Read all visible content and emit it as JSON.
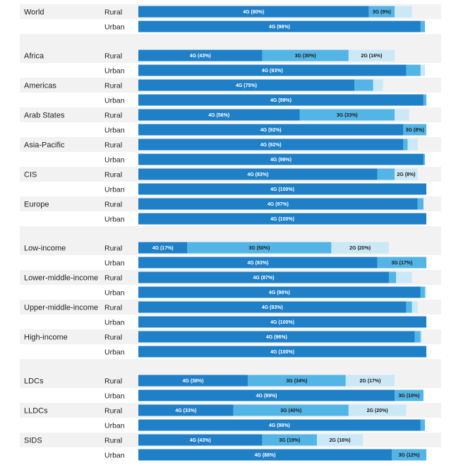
{
  "chart_data": {
    "type": "bar",
    "orientation": "horizontal",
    "stacked": true,
    "value_unit": "%",
    "xlim": [
      0,
      100
    ],
    "grid": false,
    "legend": "none",
    "segment_order": [
      "4G",
      "3G",
      "2G"
    ],
    "segment_colors": {
      "4G": "#1f80c8",
      "3G": "#53b4e6",
      "2G": "#cbe8f7"
    },
    "row_band_colors": [
      "#f2f2f2",
      "#ffffff"
    ],
    "groups": [
      {
        "section": 0,
        "label": "World",
        "rows": [
          {
            "area": "Rural",
            "values": {
              "4G": 80,
              "3G": 9,
              "2G": 6
            },
            "labels": {
              "4G": "4G (80%)",
              "3G": "3G (9%)"
            }
          },
          {
            "area": "Urban",
            "values": {
              "4G": 98,
              "3G": 1.5,
              "2G": 0
            },
            "labels": {
              "4G": "4G (98%)"
            }
          }
        ]
      },
      {
        "section": 1,
        "label": "Africa",
        "rows": [
          {
            "area": "Rural",
            "values": {
              "4G": 43,
              "3G": 30,
              "2G": 16
            },
            "labels": {
              "4G": "4G (43%)",
              "3G": "3G (30%)",
              "2G": "2G (16%)"
            }
          },
          {
            "area": "Urban",
            "values": {
              "4G": 93,
              "3G": 5,
              "2G": 1.5
            },
            "labels": {
              "4G": "4G (93%)"
            }
          }
        ]
      },
      {
        "section": 1,
        "label": "Americas",
        "rows": [
          {
            "area": "Rural",
            "values": {
              "4G": 75,
              "3G": 6.5,
              "2G": 3.5
            },
            "labels": {
              "4G": "4G (75%)"
            }
          },
          {
            "area": "Urban",
            "values": {
              "4G": 99,
              "3G": 1,
              "2G": 0
            },
            "labels": {
              "4G": "4G (99%)"
            }
          }
        ]
      },
      {
        "section": 1,
        "label": "Arab States",
        "rows": [
          {
            "area": "Rural",
            "values": {
              "4G": 56,
              "3G": 33,
              "2G": 5
            },
            "labels": {
              "4G": "4G (56%)",
              "3G": "3G (33%)"
            }
          },
          {
            "area": "Urban",
            "values": {
              "4G": 92,
              "3G": 8,
              "2G": 0
            },
            "labels": {
              "4G": "4G (92%)",
              "3G": "3G (8%)"
            }
          }
        ]
      },
      {
        "section": 1,
        "label": "Asia-Pacific",
        "rows": [
          {
            "area": "Rural",
            "values": {
              "4G": 92,
              "3G": 1.5,
              "2G": 3.5
            },
            "labels": {
              "4G": "4G (92%)"
            }
          },
          {
            "area": "Urban",
            "values": {
              "4G": 99,
              "3G": 0.5,
              "2G": 0
            },
            "labels": {
              "4G": "4G (99%)"
            }
          }
        ]
      },
      {
        "section": 1,
        "label": "CIS",
        "rows": [
          {
            "area": "Rural",
            "values": {
              "4G": 83,
              "3G": 6,
              "2G": 8
            },
            "labels": {
              "4G": "4G (83%)",
              "2G": "2G (8%)"
            }
          },
          {
            "area": "Urban",
            "values": {
              "4G": 100,
              "3G": 0,
              "2G": 0
            },
            "labels": {
              "4G": "4G (100%)"
            }
          }
        ]
      },
      {
        "section": 1,
        "label": "Europe",
        "rows": [
          {
            "area": "Rural",
            "values": {
              "4G": 97,
              "3G": 2,
              "2G": 0
            },
            "labels": {
              "4G": "4G (97%)"
            }
          },
          {
            "area": "Urban",
            "values": {
              "4G": 100,
              "3G": 0,
              "2G": 0
            },
            "labels": {
              "4G": "4G (100%)"
            }
          }
        ]
      },
      {
        "section": 2,
        "label": "Low-income",
        "rows": [
          {
            "area": "Rural",
            "values": {
              "4G": 17,
              "3G": 50,
              "2G": 20
            },
            "labels": {
              "4G": "4G (17%)",
              "3G": "3G (50%)",
              "2G": "2G (20%)"
            }
          },
          {
            "area": "Urban",
            "values": {
              "4G": 83,
              "3G": 17,
              "2G": 0
            },
            "labels": {
              "4G": "4G (83%)",
              "3G": "3G (17%)"
            }
          }
        ]
      },
      {
        "section": 2,
        "label": "Lower-middle-income",
        "rows": [
          {
            "area": "Rural",
            "values": {
              "4G": 87,
              "3G": 2.5,
              "2G": 5.5
            },
            "labels": {
              "4G": "4G (87%)"
            }
          },
          {
            "area": "Urban",
            "values": {
              "4G": 98,
              "3G": 1.5,
              "2G": 0.5
            },
            "labels": {
              "4G": "4G (98%)"
            }
          }
        ]
      },
      {
        "section": 2,
        "label": "Upper-middle-income",
        "rows": [
          {
            "area": "Rural",
            "values": {
              "4G": 93,
              "3G": 2,
              "2G": 2
            },
            "labels": {
              "4G": "4G (93%)"
            }
          },
          {
            "area": "Urban",
            "values": {
              "4G": 100,
              "3G": 0,
              "2G": 0
            },
            "labels": {
              "4G": "4G (100%)"
            }
          }
        ]
      },
      {
        "section": 2,
        "label": "High-income",
        "rows": [
          {
            "area": "Rural",
            "values": {
              "4G": 96,
              "3G": 2,
              "2G": 0.5
            },
            "labels": {
              "4G": "4G (96%)"
            }
          },
          {
            "area": "Urban",
            "values": {
              "4G": 100,
              "3G": 0,
              "2G": 0
            },
            "labels": {
              "4G": "4G (100%)"
            }
          }
        ]
      },
      {
        "section": 3,
        "label": "LDCs",
        "rows": [
          {
            "area": "Rural",
            "values": {
              "4G": 38,
              "3G": 34,
              "2G": 17
            },
            "labels": {
              "4G": "4G (38%)",
              "3G": "3G (34%)",
              "2G": "2G (17%)"
            }
          },
          {
            "area": "Urban",
            "values": {
              "4G": 89,
              "3G": 10,
              "2G": 0
            },
            "labels": {
              "4G": "4G (89%)",
              "3G": "3G (10%)"
            }
          }
        ]
      },
      {
        "section": 3,
        "label": "LLDCs",
        "rows": [
          {
            "area": "Rural",
            "values": {
              "4G": 33,
              "3G": 40,
              "2G": 20
            },
            "labels": {
              "4G": "4G (33%)",
              "3G": "3G (40%)",
              "2G": "2G (20%)"
            }
          },
          {
            "area": "Urban",
            "values": {
              "4G": 98,
              "3G": 1.5,
              "2G": 0
            },
            "labels": {
              "4G": "4G (98%)"
            }
          }
        ]
      },
      {
        "section": 3,
        "label": "SIDS",
        "rows": [
          {
            "area": "Rural",
            "values": {
              "4G": 43,
              "3G": 19,
              "2G": 16
            },
            "labels": {
              "4G": "4G (43%)",
              "3G": "3G (19%)",
              "2G": "2G (16%)"
            }
          },
          {
            "area": "Urban",
            "values": {
              "4G": 88,
              "3G": 12,
              "2G": 0
            },
            "labels": {
              "4G": "4G (88%)",
              "3G": "3G (12%)"
            }
          }
        ]
      }
    ]
  }
}
